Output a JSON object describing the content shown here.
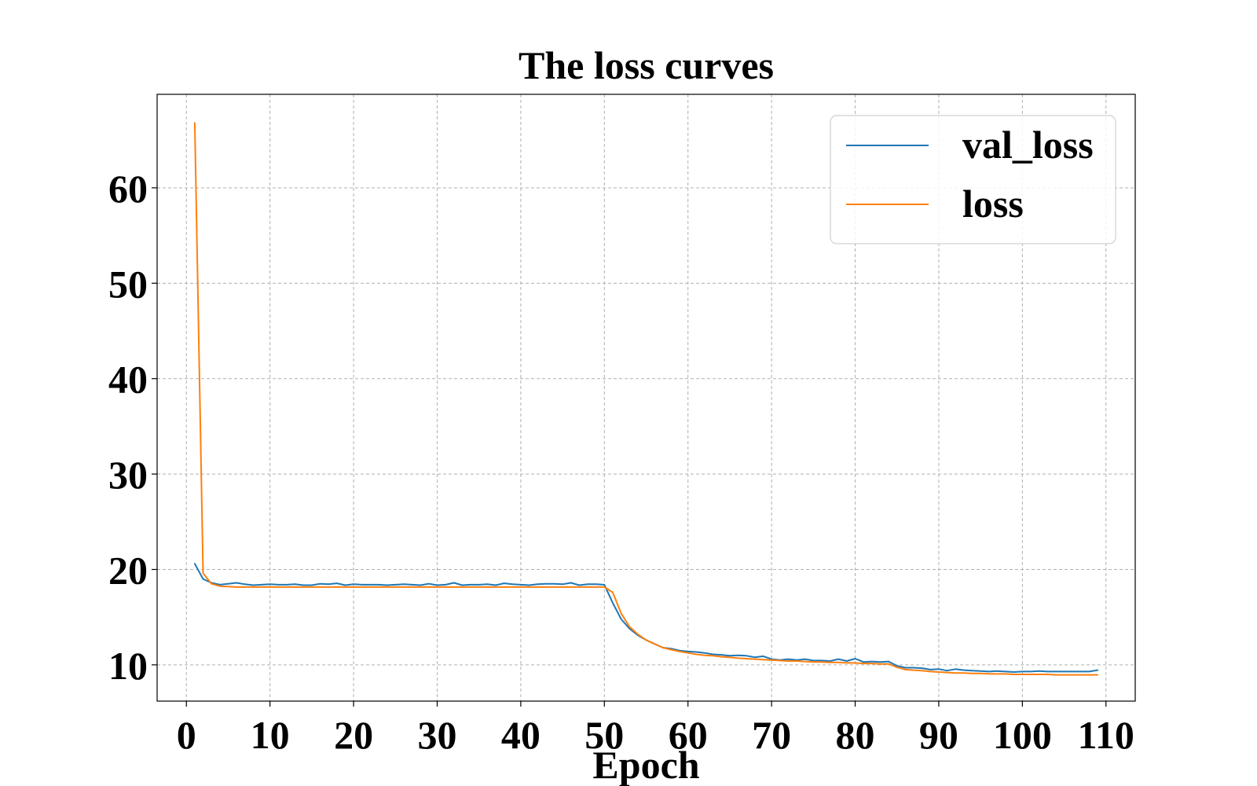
{
  "chart_data": {
    "type": "line",
    "title": "The loss curves",
    "xlabel": "Epoch",
    "ylabel": "",
    "xlim": [
      -3.5,
      113.5
    ],
    "ylim": [
      6.2,
      69.8
    ],
    "xticks": [
      0,
      10,
      20,
      30,
      40,
      50,
      60,
      70,
      80,
      90,
      100,
      110
    ],
    "yticks": [
      10,
      20,
      30,
      40,
      50,
      60
    ],
    "grid": true,
    "legend": {
      "position": "top-right"
    },
    "x": [
      1,
      2,
      3,
      4,
      5,
      6,
      7,
      8,
      9,
      10,
      11,
      12,
      13,
      14,
      15,
      16,
      17,
      18,
      19,
      20,
      21,
      22,
      23,
      24,
      25,
      26,
      27,
      28,
      29,
      30,
      31,
      32,
      33,
      34,
      35,
      36,
      37,
      38,
      39,
      40,
      41,
      42,
      43,
      44,
      45,
      46,
      47,
      48,
      49,
      50,
      51,
      52,
      53,
      54,
      55,
      56,
      57,
      58,
      59,
      60,
      61,
      62,
      63,
      64,
      65,
      66,
      67,
      68,
      69,
      70,
      71,
      72,
      73,
      74,
      75,
      76,
      77,
      78,
      79,
      80,
      81,
      82,
      83,
      84,
      85,
      86,
      87,
      88,
      89,
      90,
      91,
      92,
      93,
      94,
      95,
      96,
      97,
      98,
      99,
      100,
      101,
      102,
      103,
      104,
      105,
      106,
      107,
      108,
      109
    ],
    "series": [
      {
        "name": "val_loss",
        "color": "#1f77b4",
        "values": [
          20.6,
          19.0,
          18.6,
          18.4,
          18.5,
          18.6,
          18.45,
          18.35,
          18.4,
          18.45,
          18.4,
          18.4,
          18.45,
          18.35,
          18.35,
          18.5,
          18.45,
          18.55,
          18.35,
          18.45,
          18.4,
          18.4,
          18.4,
          18.35,
          18.4,
          18.45,
          18.4,
          18.35,
          18.5,
          18.35,
          18.4,
          18.6,
          18.35,
          18.4,
          18.4,
          18.45,
          18.35,
          18.55,
          18.45,
          18.4,
          18.35,
          18.45,
          18.5,
          18.5,
          18.45,
          18.6,
          18.35,
          18.45,
          18.45,
          18.4,
          16.5,
          14.8,
          13.8,
          13.1,
          12.6,
          12.2,
          11.8,
          11.7,
          11.5,
          11.4,
          11.35,
          11.25,
          11.1,
          11.05,
          10.95,
          11.0,
          10.95,
          10.8,
          10.9,
          10.6,
          10.5,
          10.6,
          10.5,
          10.6,
          10.45,
          10.45,
          10.4,
          10.6,
          10.4,
          10.65,
          10.3,
          10.35,
          10.3,
          10.35,
          9.9,
          9.7,
          9.7,
          9.65,
          9.5,
          9.55,
          9.4,
          9.55,
          9.45,
          9.4,
          9.35,
          9.3,
          9.35,
          9.3,
          9.25,
          9.3,
          9.3,
          9.35,
          9.3,
          9.3,
          9.3,
          9.3,
          9.3,
          9.3,
          9.45
        ]
      },
      {
        "name": "loss",
        "color": "#ff7f0e",
        "values": [
          66.8,
          19.6,
          18.5,
          18.25,
          18.2,
          18.15,
          18.15,
          18.15,
          18.15,
          18.15,
          18.15,
          18.15,
          18.15,
          18.15,
          18.15,
          18.15,
          18.15,
          18.15,
          18.15,
          18.15,
          18.15,
          18.15,
          18.15,
          18.15,
          18.15,
          18.15,
          18.15,
          18.15,
          18.15,
          18.15,
          18.15,
          18.15,
          18.15,
          18.15,
          18.15,
          18.15,
          18.15,
          18.15,
          18.15,
          18.15,
          18.15,
          18.15,
          18.15,
          18.15,
          18.15,
          18.15,
          18.15,
          18.15,
          18.15,
          18.15,
          17.6,
          15.4,
          14.0,
          13.2,
          12.6,
          12.2,
          11.8,
          11.6,
          11.4,
          11.25,
          11.1,
          11.0,
          10.95,
          10.85,
          10.8,
          10.7,
          10.65,
          10.6,
          10.55,
          10.5,
          10.45,
          10.4,
          10.4,
          10.35,
          10.3,
          10.3,
          10.25,
          10.25,
          10.2,
          10.2,
          10.15,
          10.15,
          10.1,
          10.1,
          9.75,
          9.5,
          9.45,
          9.4,
          9.3,
          9.25,
          9.2,
          9.15,
          9.15,
          9.1,
          9.1,
          9.05,
          9.05,
          9.05,
          9.0,
          9.0,
          9.0,
          9.0,
          9.0,
          8.95,
          8.95,
          8.95,
          8.95,
          8.95,
          8.95
        ]
      }
    ]
  }
}
